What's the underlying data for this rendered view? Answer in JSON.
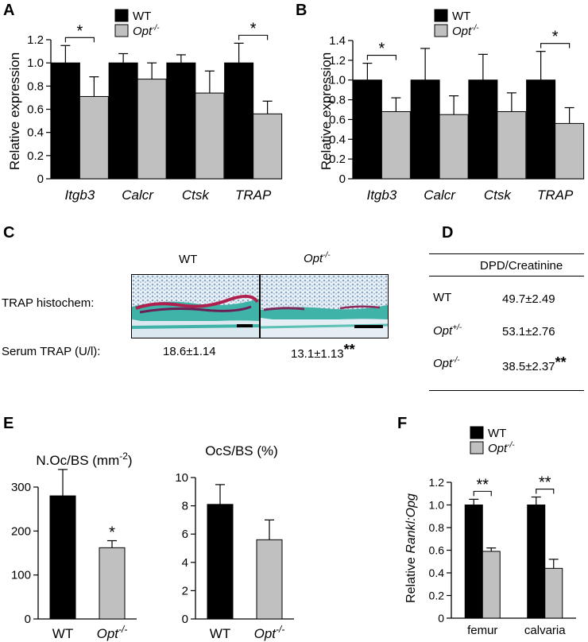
{
  "colors": {
    "wt": "#000000",
    "opt": "#c0c0c0",
    "axis": "#000000"
  },
  "panels": {
    "A": {
      "letter": "A"
    },
    "B": {
      "letter": "B"
    },
    "C": {
      "letter": "C"
    },
    "D": {
      "letter": "D"
    },
    "E": {
      "letter": "E"
    },
    "F": {
      "letter": "F"
    }
  },
  "legend": {
    "wt": "WT",
    "opt": "Opt",
    "opt_sup": "-/-"
  },
  "chart_data": [
    {
      "id": "A",
      "type": "bar",
      "ylabel": "Relative expression",
      "ylim": [
        0,
        1.2
      ],
      "yticks": [
        "0",
        "0.2",
        "0.4",
        "0.6",
        "0.8",
        "1.0",
        "1.2"
      ],
      "categories": [
        "Itgb3",
        "Calcr",
        "Ctsk",
        "TRAP"
      ],
      "series": [
        {
          "name": "WT",
          "values": [
            1.0,
            1.0,
            1.0,
            1.0
          ],
          "err": [
            0.15,
            0.08,
            0.07,
            0.17
          ]
        },
        {
          "name": "Opt -/-",
          "values": [
            0.71,
            0.86,
            0.74,
            0.56
          ],
          "err": [
            0.17,
            0.14,
            0.19,
            0.11
          ]
        }
      ],
      "sig": [
        {
          "cat": 0,
          "label": "*"
        },
        {
          "cat": 3,
          "label": "*"
        }
      ],
      "legend": "top"
    },
    {
      "id": "B",
      "type": "bar",
      "ylabel": "Relative expression",
      "ylim": [
        0,
        1.4
      ],
      "yticks": [
        "0",
        "0.2",
        "0.4",
        "0.6",
        "0.8",
        "1.0",
        "1.2",
        "1.4"
      ],
      "categories": [
        "Itgb3",
        "Calcr",
        "Ctsk",
        "TRAP"
      ],
      "series": [
        {
          "name": "WT",
          "values": [
            1.0,
            1.0,
            1.0,
            1.0
          ],
          "err": [
            0.17,
            0.32,
            0.26,
            0.29
          ]
        },
        {
          "name": "Opt -/-",
          "values": [
            0.68,
            0.65,
            0.68,
            0.56
          ],
          "err": [
            0.14,
            0.19,
            0.19,
            0.16
          ]
        }
      ],
      "sig": [
        {
          "cat": 0,
          "label": "*"
        },
        {
          "cat": 3,
          "label": "*"
        }
      ],
      "legend": "top"
    },
    {
      "id": "E1",
      "type": "bar",
      "title": "N.Oc/BS (mm",
      "title_sup": "-2",
      "title_end": ")",
      "ylim": [
        0,
        300
      ],
      "yticks": [
        "0",
        "100",
        "200",
        "300"
      ],
      "categories": [
        "WT",
        "Opt"
      ],
      "category_sup": [
        "",
        "-/-"
      ],
      "values": [
        280,
        162
      ],
      "err": [
        60,
        16
      ],
      "sig": [
        {
          "cat": 1,
          "label": "*"
        }
      ]
    },
    {
      "id": "E2",
      "type": "bar",
      "title": "OcS/BS (%)",
      "ylim": [
        0,
        10
      ],
      "yticks": [
        "0",
        "2",
        "4",
        "6",
        "8",
        "10"
      ],
      "categories": [
        "WT",
        "Opt"
      ],
      "category_sup": [
        "",
        "-/-"
      ],
      "values": [
        8.1,
        5.6
      ],
      "err": [
        1.4,
        1.4
      ],
      "sig": []
    },
    {
      "id": "F",
      "type": "bar",
      "ylabel_pre": "Relative ",
      "ylabel_it": "Rankl:Opg",
      "ylim": [
        0,
        1.2
      ],
      "yticks": [
        "0",
        "0.2",
        "0.4",
        "0.6",
        "0.8",
        "1.0",
        "1.2"
      ],
      "categories": [
        "femur",
        "calvaria"
      ],
      "series": [
        {
          "name": "WT",
          "values": [
            1.0,
            1.0
          ],
          "err": [
            0.05,
            0.07
          ]
        },
        {
          "name": "Opt -/-",
          "values": [
            0.59,
            0.44
          ],
          "err": [
            0.03,
            0.08
          ]
        }
      ],
      "sig": [
        {
          "cat": 0,
          "label": "**"
        },
        {
          "cat": 1,
          "label": "**"
        }
      ],
      "legend": "top-left"
    }
  ],
  "panel_c": {
    "wt_label": "WT",
    "opt_label": "Opt",
    "opt_sup": "-/-",
    "row_label": "TRAP histochem:",
    "serum_label": "Serum TRAP (U/l):",
    "wt_value": "18.6±1.14",
    "opt_value": "13.1±1.13",
    "opt_sig": "**"
  },
  "panel_d": {
    "header": "DPD/Creatinine",
    "rows": [
      {
        "label": "WT",
        "sup": "",
        "italic": false,
        "value": "49.7±2.49",
        "sig": ""
      },
      {
        "label": "Opt",
        "sup": "+/-",
        "italic": true,
        "value": "53.1±2.76",
        "sig": ""
      },
      {
        "label": "Opt",
        "sup": "-/-",
        "italic": true,
        "value": "38.5±2.37",
        "sig": "**"
      }
    ]
  }
}
